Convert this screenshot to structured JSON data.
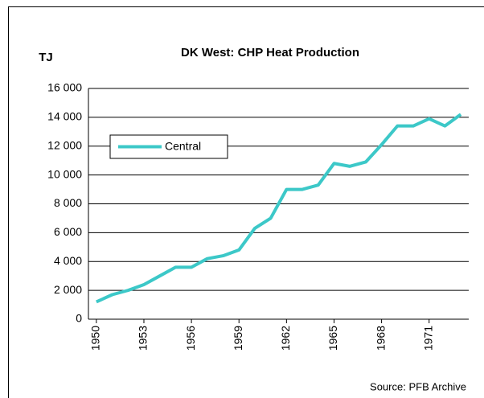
{
  "chart_data": {
    "type": "line",
    "title": "DK West: CHP Heat Production",
    "y_label": "TJ",
    "source": "Source: PFB Archive",
    "x": [
      1950,
      1951,
      1952,
      1953,
      1954,
      1955,
      1956,
      1957,
      1958,
      1959,
      1960,
      1961,
      1962,
      1963,
      1964,
      1965,
      1966,
      1967,
      1968,
      1969,
      1970,
      1971,
      1972,
      1973
    ],
    "series": [
      {
        "name": "Central",
        "color": "#3cc8c8",
        "values": [
          1200,
          1700,
          2000,
          2400,
          3000,
          3600,
          3600,
          4200,
          4400,
          4800,
          6300,
          7000,
          9000,
          9000,
          9300,
          10800,
          10600,
          10900,
          12100,
          13400,
          13400,
          13900,
          13400,
          14200
        ]
      }
    ],
    "xlim": [
      1949.5,
      1973.5
    ],
    "xticks": [
      1950,
      1953,
      1956,
      1959,
      1962,
      1965,
      1968,
      1971
    ],
    "ylim": [
      0,
      16000
    ],
    "yticks": [
      0,
      {
        "value": 2000,
        "label": "2 000"
      },
      {
        "value": 4000,
        "label": "4 000"
      },
      {
        "value": 6000,
        "label": "6 000"
      },
      {
        "value": 8000,
        "label": "8 000"
      },
      {
        "value": 10000,
        "label": "10 000"
      },
      {
        "value": 12000,
        "label": "12 000"
      },
      {
        "value": 14000,
        "label": "14 000"
      },
      {
        "value": 16000,
        "label": "16 000"
      }
    ],
    "grid": true,
    "legend_position": "upper left"
  }
}
